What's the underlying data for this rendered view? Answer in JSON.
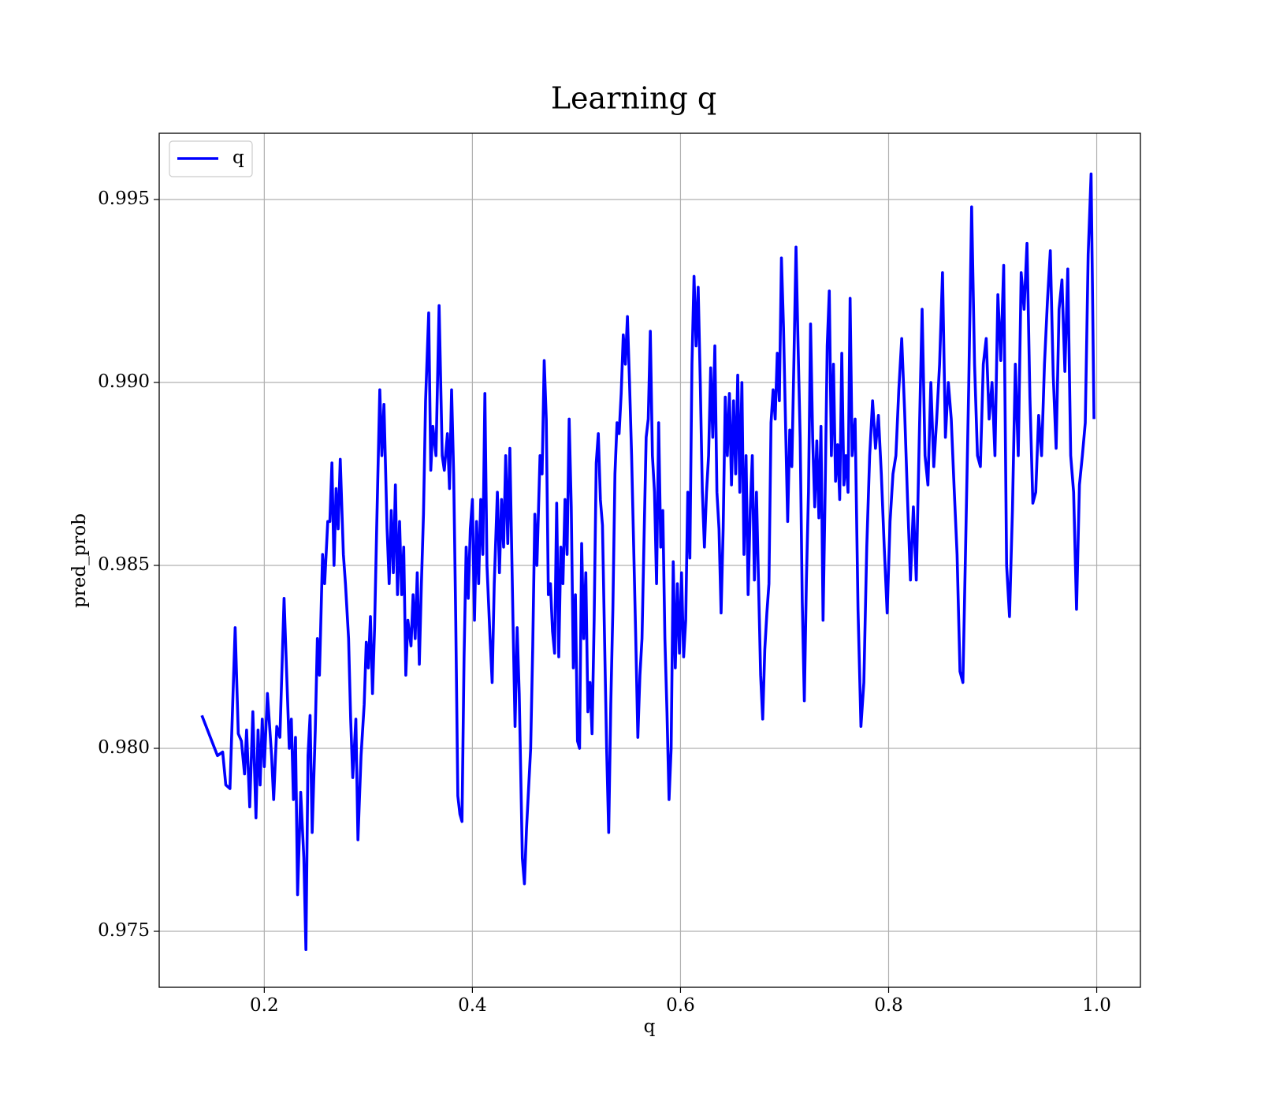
{
  "chart_data": {
    "type": "line",
    "title": "Learning q",
    "x_label": "q",
    "y_label": "pred_prob",
    "x": [
      0.14,
      0.155,
      0.16,
      0.163,
      0.167,
      0.172,
      0.175,
      0.178,
      0.181,
      0.183,
      0.186,
      0.189,
      0.192,
      0.194,
      0.196,
      0.198,
      0.2,
      0.203,
      0.207,
      0.209,
      0.212,
      0.215,
      0.219,
      0.224,
      0.226,
      0.228,
      0.23,
      0.232,
      0.235,
      0.238,
      0.24,
      0.242,
      0.244,
      0.246,
      0.249,
      0.251,
      0.253,
      0.256,
      0.258,
      0.261,
      0.263,
      0.265,
      0.267,
      0.269,
      0.271,
      0.273,
      0.276,
      0.278,
      0.281,
      0.283,
      0.285,
      0.288,
      0.29,
      0.293,
      0.296,
      0.298,
      0.3,
      0.302,
      0.304,
      0.306,
      0.308,
      0.311,
      0.313,
      0.315,
      0.318,
      0.32,
      0.322,
      0.324,
      0.326,
      0.328,
      0.33,
      0.332,
      0.334,
      0.336,
      0.338,
      0.341,
      0.343,
      0.345,
      0.347,
      0.349,
      0.351,
      0.353,
      0.355,
      0.358,
      0.36,
      0.362,
      0.365,
      0.368,
      0.371,
      0.373,
      0.376,
      0.378,
      0.38,
      0.382,
      0.384,
      0.386,
      0.388,
      0.39,
      0.392,
      0.394,
      0.396,
      0.398,
      0.4,
      0.402,
      0.404,
      0.406,
      0.408,
      0.41,
      0.412,
      0.414,
      0.417,
      0.419,
      0.421,
      0.424,
      0.426,
      0.428,
      0.43,
      0.432,
      0.434,
      0.436,
      0.439,
      0.441,
      0.443,
      0.445,
      0.448,
      0.45,
      0.452,
      0.456,
      0.458,
      0.46,
      0.462,
      0.465,
      0.467,
      0.469,
      0.471,
      0.473,
      0.475,
      0.477,
      0.479,
      0.481,
      0.483,
      0.485,
      0.487,
      0.489,
      0.491,
      0.493,
      0.495,
      0.497,
      0.499,
      0.501,
      0.503,
      0.505,
      0.507,
      0.509,
      0.511,
      0.513,
      0.515,
      0.517,
      0.519,
      0.521,
      0.523,
      0.525,
      0.527,
      0.529,
      0.531,
      0.533,
      0.535,
      0.537,
      0.539,
      0.541,
      0.543,
      0.545,
      0.547,
      0.549,
      0.551,
      0.553,
      0.555,
      0.557,
      0.559,
      0.561,
      0.563,
      0.565,
      0.567,
      0.569,
      0.571,
      0.573,
      0.575,
      0.577,
      0.579,
      0.581,
      0.583,
      0.585,
      0.587,
      0.589,
      0.591,
      0.593,
      0.595,
      0.597,
      0.599,
      0.601,
      0.603,
      0.605,
      0.607,
      0.609,
      0.611,
      0.613,
      0.615,
      0.617,
      0.619,
      0.621,
      0.623,
      0.625,
      0.627,
      0.629,
      0.631,
      0.633,
      0.635,
      0.637,
      0.639,
      0.641,
      0.643,
      0.645,
      0.647,
      0.649,
      0.651,
      0.653,
      0.655,
      0.657,
      0.659,
      0.661,
      0.663,
      0.665,
      0.667,
      0.669,
      0.671,
      0.673,
      0.675,
      0.677,
      0.679,
      0.681,
      0.683,
      0.685,
      0.687,
      0.689,
      0.691,
      0.693,
      0.695,
      0.697,
      0.699,
      0.701,
      0.703,
      0.705,
      0.707,
      0.709,
      0.711,
      0.713,
      0.715,
      0.717,
      0.719,
      0.721,
      0.723,
      0.725,
      0.727,
      0.729,
      0.731,
      0.733,
      0.735,
      0.737,
      0.739,
      0.741,
      0.743,
      0.745,
      0.747,
      0.749,
      0.751,
      0.753,
      0.755,
      0.757,
      0.759,
      0.761,
      0.763,
      0.765,
      0.7678,
      0.7706,
      0.7734,
      0.7762,
      0.779,
      0.7818,
      0.7846,
      0.7874,
      0.7902,
      0.793,
      0.7958,
      0.7986,
      0.8014,
      0.8042,
      0.807,
      0.8098,
      0.8126,
      0.8154,
      0.8182,
      0.821,
      0.8238,
      0.8266,
      0.8294,
      0.8322,
      0.835,
      0.8378,
      0.8406,
      0.8434,
      0.8462,
      0.849,
      0.8518,
      0.8546,
      0.8574,
      0.8602,
      0.863,
      0.8658,
      0.8686,
      0.8714,
      0.8742,
      0.877,
      0.8798,
      0.8826,
      0.8854,
      0.8882,
      0.891,
      0.8938,
      0.8966,
      0.8994,
      0.9022,
      0.905,
      0.9078,
      0.9106,
      0.9134,
      0.9162,
      0.919,
      0.9218,
      0.9246,
      0.9274,
      0.9302,
      0.933,
      0.9358,
      0.9386,
      0.9414,
      0.9442,
      0.947,
      0.9498,
      0.9526,
      0.9554,
      0.9582,
      0.961,
      0.9638,
      0.9666,
      0.9694,
      0.9722,
      0.975,
      0.9778,
      0.9806,
      0.9834,
      0.9862,
      0.989,
      0.9918,
      0.9946,
      0.9974
    ],
    "series": [
      {
        "name": "q",
        "color": "#0000ff",
        "values": [
          0.9809,
          0.9798,
          0.9799,
          0.979,
          0.9789,
          0.9833,
          0.9804,
          0.9802,
          0.9793,
          0.9805,
          0.9784,
          0.981,
          0.9781,
          0.9805,
          0.979,
          0.9808,
          0.9795,
          0.9815,
          0.9798,
          0.9786,
          0.9806,
          0.9803,
          0.9841,
          0.98,
          0.9808,
          0.9786,
          0.9803,
          0.976,
          0.9788,
          0.977,
          0.9745,
          0.9798,
          0.9809,
          0.9777,
          0.9805,
          0.983,
          0.982,
          0.9853,
          0.9845,
          0.9862,
          0.9862,
          0.9878,
          0.985,
          0.9871,
          0.986,
          0.9879,
          0.9853,
          0.9845,
          0.983,
          0.9808,
          0.9792,
          0.9808,
          0.9775,
          0.9798,
          0.9812,
          0.9829,
          0.9822,
          0.9836,
          0.9815,
          0.9833,
          0.986,
          0.9898,
          0.988,
          0.9894,
          0.986,
          0.9845,
          0.9865,
          0.9848,
          0.9872,
          0.9842,
          0.9862,
          0.9842,
          0.9855,
          0.982,
          0.9835,
          0.9828,
          0.9842,
          0.983,
          0.9848,
          0.9823,
          0.9845,
          0.9864,
          0.9895,
          0.9919,
          0.9876,
          0.9888,
          0.988,
          0.9921,
          0.988,
          0.9876,
          0.9886,
          0.9871,
          0.9898,
          0.9875,
          0.9835,
          0.9787,
          0.9782,
          0.978,
          0.9825,
          0.9855,
          0.9841,
          0.986,
          0.9868,
          0.9835,
          0.9862,
          0.9845,
          0.9868,
          0.9853,
          0.9897,
          0.985,
          0.983,
          0.9818,
          0.9845,
          0.987,
          0.9848,
          0.9868,
          0.9855,
          0.988,
          0.9856,
          0.9882,
          0.9835,
          0.9806,
          0.9833,
          0.9815,
          0.977,
          0.9763,
          0.9778,
          0.98,
          0.9828,
          0.9864,
          0.985,
          0.988,
          0.9875,
          0.9906,
          0.989,
          0.9842,
          0.9845,
          0.9832,
          0.9826,
          0.9867,
          0.9825,
          0.9855,
          0.9845,
          0.9868,
          0.9853,
          0.989,
          0.9866,
          0.9822,
          0.9842,
          0.9802,
          0.98,
          0.9856,
          0.983,
          0.9848,
          0.981,
          0.9818,
          0.9804,
          0.9835,
          0.9878,
          0.9886,
          0.9868,
          0.9861,
          0.983,
          0.98,
          0.9777,
          0.9812,
          0.9838,
          0.9875,
          0.9889,
          0.9886,
          0.9897,
          0.9913,
          0.9905,
          0.9918,
          0.99,
          0.988,
          0.9855,
          0.983,
          0.9803,
          0.982,
          0.983,
          0.9858,
          0.9885,
          0.989,
          0.9914,
          0.988,
          0.987,
          0.9845,
          0.9889,
          0.9855,
          0.9865,
          0.983,
          0.981,
          0.9786,
          0.98,
          0.9851,
          0.9822,
          0.9845,
          0.9826,
          0.9848,
          0.9825,
          0.9835,
          0.987,
          0.9852,
          0.9905,
          0.9929,
          0.991,
          0.9926,
          0.99,
          0.987,
          0.9855,
          0.987,
          0.988,
          0.9904,
          0.9885,
          0.991,
          0.987,
          0.986,
          0.9837,
          0.986,
          0.9896,
          0.988,
          0.9897,
          0.9872,
          0.9895,
          0.9875,
          0.9902,
          0.987,
          0.99,
          0.9853,
          0.988,
          0.9842,
          0.9865,
          0.988,
          0.9846,
          0.987,
          0.9845,
          0.982,
          0.9808,
          0.9827,
          0.9837,
          0.9845,
          0.9889,
          0.9898,
          0.989,
          0.9908,
          0.9895,
          0.9934,
          0.9915,
          0.9888,
          0.9862,
          0.9887,
          0.9877,
          0.9906,
          0.9937,
          0.991,
          0.9885,
          0.984,
          0.9813,
          0.9846,
          0.987,
          0.9916,
          0.9885,
          0.9866,
          0.9884,
          0.9863,
          0.9888,
          0.9835,
          0.987,
          0.991,
          0.9925,
          0.988,
          0.9905,
          0.9873,
          0.9883,
          0.9868,
          0.9908,
          0.9872,
          0.988,
          0.987,
          0.9923,
          0.988,
          0.989,
          0.9838,
          0.9806,
          0.9818,
          0.9855,
          0.988,
          0.9895,
          0.9882,
          0.9891,
          0.9875,
          0.9855,
          0.9837,
          0.9862,
          0.9875,
          0.988,
          0.9898,
          0.9912,
          0.9892,
          0.9868,
          0.9846,
          0.9866,
          0.9846,
          0.9884,
          0.992,
          0.988,
          0.9872,
          0.99,
          0.9877,
          0.989,
          0.9905,
          0.993,
          0.9885,
          0.99,
          0.989,
          0.9871,
          0.9853,
          0.9821,
          0.9818,
          0.9858,
          0.9899,
          0.9948,
          0.9905,
          0.988,
          0.9877,
          0.9905,
          0.9912,
          0.989,
          0.99,
          0.988,
          0.9924,
          0.9906,
          0.9932,
          0.985,
          0.9836,
          0.9865,
          0.9905,
          0.988,
          0.993,
          0.992,
          0.9938,
          0.9896,
          0.9867,
          0.987,
          0.9891,
          0.988,
          0.9905,
          0.9922,
          0.9936,
          0.9902,
          0.9882,
          0.992,
          0.9928,
          0.9903,
          0.9931,
          0.988,
          0.987,
          0.9838,
          0.9872,
          0.988,
          0.9889,
          0.9935,
          0.9957,
          0.989
        ]
      }
    ],
    "xlim": [
      0.099,
      1.042
    ],
    "ylim": [
      0.97347,
      0.99681
    ],
    "xticks": [
      0.2,
      0.4,
      0.6,
      0.8,
      {
        "value": 1,
        "label": "1.0"
      }
    ],
    "yticks": [
      0.975,
      {
        "value": 0.98,
        "label": "0.980"
      },
      0.985,
      {
        "value": 0.99,
        "label": "0.990"
      },
      0.995
    ],
    "grid": true,
    "legend": "upper left"
  }
}
